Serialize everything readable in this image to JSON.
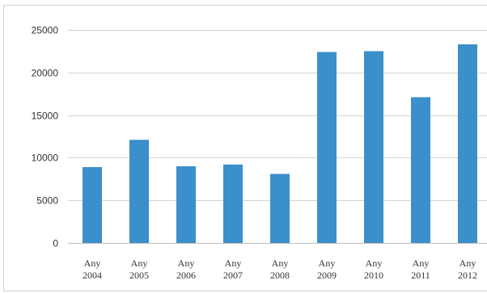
{
  "chart_data": {
    "type": "bar",
    "title": "",
    "xlabel": "",
    "ylabel": "",
    "categories": [
      [
        "Any",
        "2004"
      ],
      [
        "Any",
        "2005"
      ],
      [
        "Any",
        "2006"
      ],
      [
        "Any",
        "2007"
      ],
      [
        "Any",
        "2008"
      ],
      [
        "Any",
        "2009"
      ],
      [
        "Any",
        "2010"
      ],
      [
        "Any",
        "2011"
      ],
      [
        "Any",
        "2012"
      ]
    ],
    "values": [
      8900,
      12100,
      9000,
      9200,
      8100,
      22400,
      22500,
      17100,
      23300
    ],
    "ylim": [
      0,
      25000
    ],
    "yticks": [
      0,
      5000,
      10000,
      15000,
      20000,
      25000
    ],
    "grid": true,
    "legend": "none",
    "colors": {
      "bar": "#3b8fcb",
      "grid": "#d4d4d4",
      "axis": "#bfbfbf"
    }
  }
}
